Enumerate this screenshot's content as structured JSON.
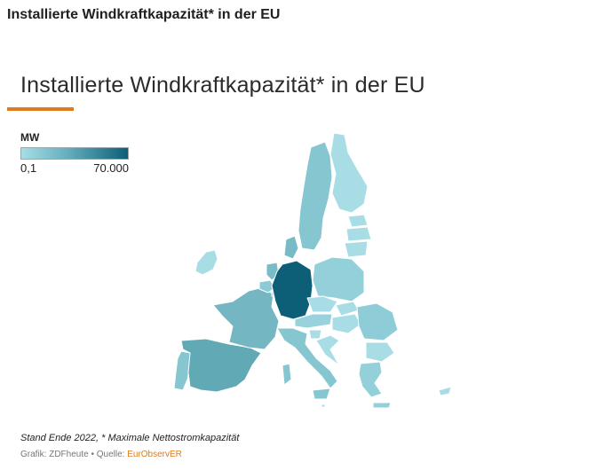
{
  "page_heading": "Installierte Windkraftkapazität* in der EU",
  "map_title": "Installierte Windkraftkapazität* in der EU",
  "legend": {
    "unit": "MW",
    "min_label": "0,1",
    "max_label": "70.000",
    "color_low": "#a6dde6",
    "color_mid": "#62acbb",
    "color_high": "#0d5f77"
  },
  "colors": {
    "accent": "#e07a1f",
    "germany": "#0d5f77",
    "spain": "#62a9b6",
    "france": "#74b7c3",
    "sweden": "#86c6d1",
    "light": "#a8dde6"
  },
  "footer": {
    "note": "Stand Ende 2022, * Maximale Nettostromkapazität",
    "credit_prefix": "Grafik: ZDFheute • Quelle: ",
    "source_name": "EurObservER"
  }
}
